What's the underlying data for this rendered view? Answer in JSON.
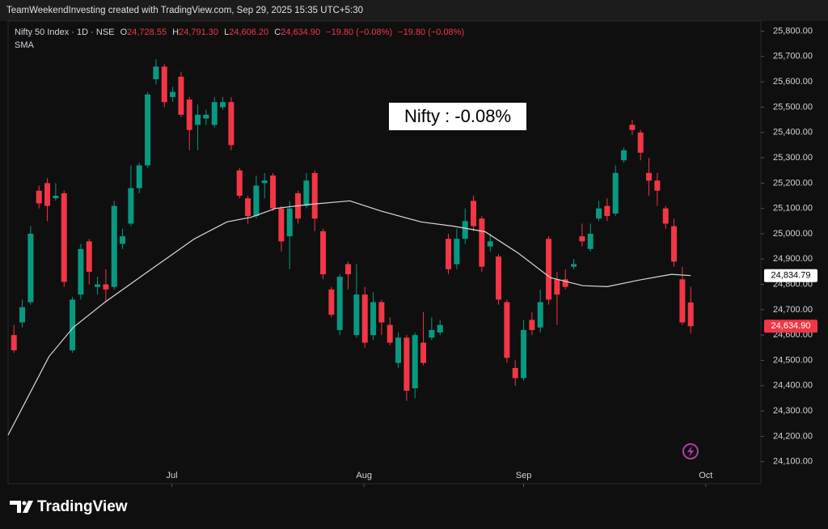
{
  "header": "TeamWeekendInvesting created with TradingView.com, Sep 29, 2025 15:35 UTC+5:30",
  "legend": {
    "symbol": "Nifty 50 Index · 1D · NSE",
    "o": "O",
    "open": "24,728.55",
    "h": "H",
    "high": "24,791.30",
    "l": "L",
    "low": "24,606.20",
    "c": "C",
    "close": "24,634.90",
    "change1": "−19.80 (−0.08%)",
    "change2": "−19.80 (−0.08%)",
    "indicator": "SMA"
  },
  "footer": "TradingView",
  "chart_data": {
    "type": "candlestick",
    "annotation": "Nifty : -0.08%",
    "up_color": "#089981",
    "down_color": "#f23645",
    "open": [
      24600,
      24650,
      24730,
      25170,
      25200,
      25140,
      25160,
      24540,
      24760,
      24970,
      24790,
      24800,
      24790,
      24960,
      25040,
      25180,
      25270,
      25610,
      25660,
      25540,
      25620,
      25530,
      25430,
      25455,
      25430,
      25500,
      25520,
      25250,
      25140,
      25070,
      25200,
      25230,
      25100,
      24990,
      25160,
      25110,
      25240,
      25010,
      24780,
      24620,
      24880,
      24600,
      24760,
      24600,
      24730,
      24640,
      24490,
      24590,
      24390,
      24570,
      24590,
      24610,
      24980,
      24880,
      24980,
      25130,
      25060,
      24950,
      24910,
      24730,
      24470,
      24430,
      24660,
      24630,
      24980,
      24820,
      24820,
      24870,
      24990,
      24940,
      25060,
      25110,
      25080,
      25290,
      25430,
      25400,
      25240,
      25210,
      25100,
      25030,
      24820,
      24728.55
    ],
    "high": [
      24640,
      24740,
      25030,
      25190,
      25220,
      25200,
      25170,
      24750,
      24960,
      24980,
      24830,
      24860,
      25130,
      25020,
      25270,
      25280,
      25560,
      25690,
      25670,
      25580,
      25640,
      25540,
      25510,
      25490,
      25540,
      25540,
      25540,
      25260,
      25150,
      25230,
      25240,
      25240,
      25110,
      25130,
      25170,
      25240,
      25250,
      25020,
      24790,
      24840,
      24890,
      24880,
      24790,
      24770,
      24740,
      24670,
      24610,
      24600,
      24610,
      24690,
      24670,
      24660,
      25000,
      25020,
      25100,
      25150,
      25070,
      25000,
      24920,
      24740,
      24500,
      24660,
      24690,
      24780,
      24990,
      24850,
      24860,
      24900,
      25040,
      25040,
      25130,
      25140,
      25270,
      25340,
      25450,
      25410,
      25300,
      25240,
      25110,
      25060,
      24870,
      24791.3
    ],
    "low": [
      24530,
      24630,
      24720,
      25100,
      25050,
      25130,
      24790,
      24530,
      24740,
      24800,
      24760,
      24730,
      24780,
      24940,
      25030,
      25160,
      25260,
      25590,
      25500,
      25520,
      25460,
      25330,
      25330,
      25430,
      25420,
      25490,
      25330,
      25140,
      25040,
      25060,
      25140,
      25090,
      24930,
      24860,
      25040,
      25100,
      25010,
      24820,
      24670,
      24600,
      24780,
      24590,
      24550,
      24580,
      24600,
      24560,
      24470,
      24340,
      24350,
      24480,
      24580,
      24600,
      24840,
      24860,
      24960,
      25010,
      24850,
      24930,
      24720,
      24490,
      24400,
      24420,
      24600,
      24610,
      24720,
      24640,
      24780,
      24860,
      24950,
      24930,
      25050,
      25050,
      25070,
      25280,
      25390,
      25290,
      25150,
      25110,
      25020,
      24870,
      24640,
      24606.2
    ],
    "close": [
      24540,
      24710,
      25000,
      25120,
      25110,
      25150,
      24810,
      24740,
      24940,
      24850,
      24800,
      24780,
      25110,
      24990,
      25180,
      25270,
      25550,
      25660,
      25520,
      25560,
      25470,
      25410,
      25470,
      25470,
      25520,
      25520,
      25350,
      25150,
      25070,
      25190,
      25210,
      25100,
      24970,
      25100,
      25060,
      25210,
      25060,
      24840,
      24680,
      24830,
      24840,
      24760,
      24570,
      24730,
      24650,
      24570,
      24590,
      24380,
      24600,
      24490,
      24620,
      24640,
      24860,
      24980,
      25050,
      25030,
      24870,
      24970,
      24740,
      24510,
      24430,
      24620,
      24620,
      24730,
      24740,
      24760,
      24790,
      24880,
      24970,
      25000,
      25100,
      25070,
      25240,
      25330,
      25410,
      25320,
      25210,
      25170,
      25040,
      24890,
      24650,
      24634.9
    ],
    "sma": {
      "name": "SMA",
      "color": "#d9d9d9",
      "x": [
        -0.7,
        4.2,
        7.1,
        10.9,
        15.8,
        21.6,
        25.5,
        28.4,
        31.3,
        35.1,
        40.2,
        43.9,
        48.7,
        52.6,
        56.4,
        60.3,
        64.2,
        68.1,
        71,
        74.8,
        78.7,
        81
      ],
      "values": [
        24205,
        24515,
        24630,
        24730,
        24845,
        24980,
        25047,
        25065,
        25100,
        25115,
        25130,
        25090,
        25047,
        25030,
        25008,
        24925,
        24827,
        24795,
        24791,
        24817,
        24840,
        24834.79
      ]
    },
    "price_labels": [
      {
        "value": 24834.79,
        "label": "24,834.79"
      },
      {
        "value": 24634.9,
        "label": "24,634.90"
      }
    ],
    "xlim": [
      -0.7,
      89.4
    ],
    "xticks": [
      {
        "value": 18.9,
        "label": "Jul"
      },
      {
        "value": 41.9,
        "label": "Aug"
      },
      {
        "value": 61,
        "label": "Sep"
      },
      {
        "value": 82.8,
        "label": "Oct"
      }
    ],
    "ylim": [
      24013,
      25840
    ],
    "yticks": [
      {
        "value": 24100,
        "label": "24,100.00"
      },
      {
        "value": 24200,
        "label": "24,200.00"
      },
      {
        "value": 24300,
        "label": "24,300.00"
      },
      {
        "value": 24400,
        "label": "24,400.00"
      },
      {
        "value": 24500,
        "label": "24,500.00"
      },
      {
        "value": 24600,
        "label": "24,600.00"
      },
      {
        "value": 24700,
        "label": "24,700.00"
      },
      {
        "value": 24800,
        "label": "24,800.00"
      },
      {
        "value": 24900,
        "label": "24,900.00"
      },
      {
        "value": 25000,
        "label": "25,000.00"
      },
      {
        "value": 25100,
        "label": "25,100.00"
      },
      {
        "value": 25200,
        "label": "25,200.00"
      },
      {
        "value": 25300,
        "label": "25,300.00"
      },
      {
        "value": 25400,
        "label": "25,400.00"
      },
      {
        "value": 25500,
        "label": "25,500.00"
      },
      {
        "value": 25600,
        "label": "25,600.00"
      },
      {
        "value": 25700,
        "label": "25,700.00"
      },
      {
        "value": 25800,
        "label": "25,800.00"
      }
    ],
    "grid": false
  }
}
